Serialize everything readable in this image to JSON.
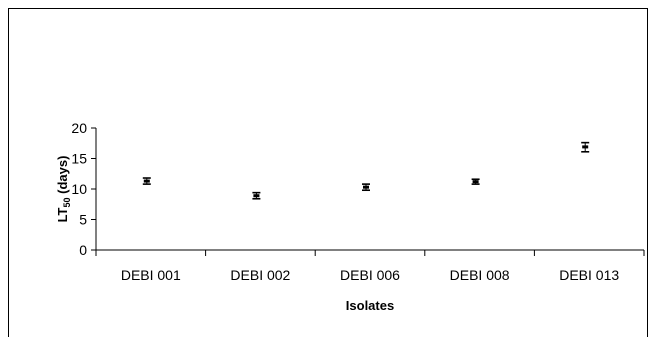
{
  "chart_data": {
    "type": "scatter",
    "title": "",
    "xlabel": "Isolates",
    "ylabel": "LT",
    "ylabel_subscript": "50",
    "ylabel_suffix": " (days)",
    "categories": [
      "DEBI 001",
      "DEBI 002",
      "DEBI 006",
      "DEBI 008",
      "DEBI 013"
    ],
    "series": [
      {
        "values": [
          11.3,
          8.9,
          10.3,
          11.2,
          16.9
        ],
        "error_low": [
          10.8,
          8.4,
          9.8,
          10.8,
          16.1
        ],
        "error_high": [
          11.8,
          9.4,
          10.8,
          11.6,
          17.6
        ]
      }
    ],
    "ylim": [
      0,
      20
    ],
    "yticks": [
      "0",
      "5",
      "10",
      "15",
      "20"
    ],
    "grid": false,
    "legend": "none",
    "colors": {
      "marker": "#000000",
      "axis": "#000000",
      "border": "#000000"
    }
  }
}
